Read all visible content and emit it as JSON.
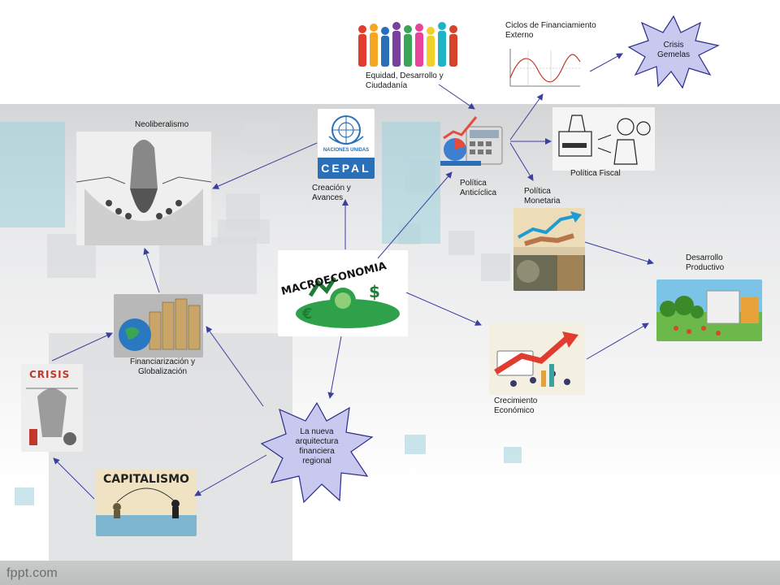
{
  "footer": {
    "brand": "fppt.com"
  },
  "nodes": {
    "neoliberalismo": "Neoliberalismo",
    "equidad": "Equidad, Desarrollo y Ciudadanía",
    "ciclos": "Ciclos de Financiamiento Externo",
    "crisis_gemelas": "Crisis Gemelas",
    "creacion": "Creación y Avances",
    "anticiclica": "Política Anticíclica",
    "fiscal": "Política Fiscal",
    "monetaria": "Política Monetaria",
    "desarrollo_productivo": "Desarrollo Productivo",
    "financiarizacion": "Financiarización y Globalización",
    "crecimiento": "Crecimiento Económico",
    "nueva_arquitectura": "La nueva arquitectura financiera regional"
  },
  "images": {
    "cepal_top": "NACIONES UNIDAS",
    "cepal_bottom": "CEPAL",
    "macro": "MACROECONOMIA",
    "capitalismo": "CAPITALISMO",
    "crisis": "CRISIS"
  },
  "colors": {
    "arrow": "#3b3f9e",
    "burst_fill": "#c9c8ee",
    "burst_stroke": "#2c2c8a",
    "cepal_blue": "#2a6fb8"
  }
}
